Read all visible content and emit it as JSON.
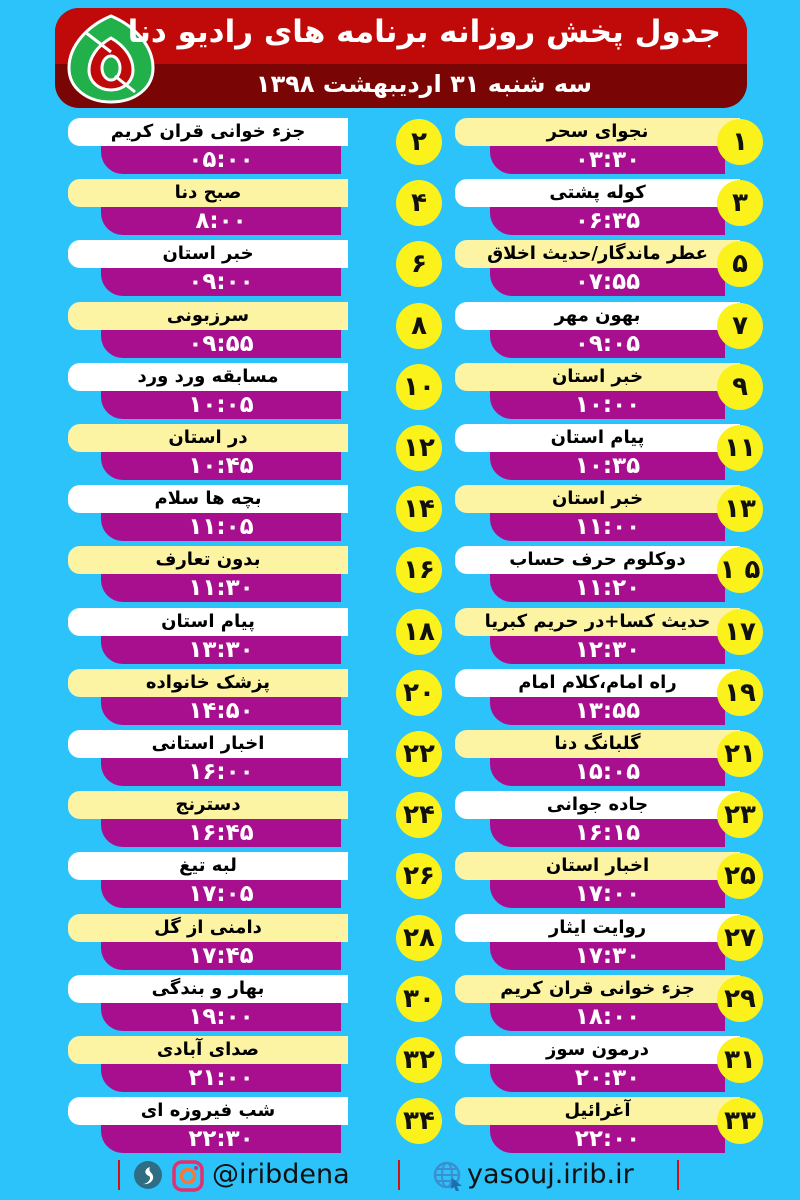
{
  "header": {
    "title": "جدول پخش روزانه برنامه های رادیو دنا",
    "date": "سه شنبه ۳۱ اردیبهشت  ۱۳۹۸",
    "logo": "radio-dena-logo"
  },
  "colors": {
    "background": "#2cc3fb",
    "header_top": "#c00a0a",
    "header_bottom": "#7a0505",
    "time_bar": "#a80f8f",
    "number_circle": "#fbf21c",
    "label_white": "#ffffff",
    "label_yellow": "#fdf4a3"
  },
  "left_column": [
    {
      "number": "۲",
      "title": "جزء خوانی قران کریم",
      "time": "۰۵:۰۰",
      "style": "white"
    },
    {
      "number": "۴",
      "title": "صبح دنا",
      "time": "۸:۰۰",
      "style": "yellow"
    },
    {
      "number": "۶",
      "title": "خبر استان",
      "time": "۰۹:۰۰",
      "style": "white"
    },
    {
      "number": "۸",
      "title": "سرزبونی",
      "time": "۰۹:۵۵",
      "style": "yellow"
    },
    {
      "number": "۱۰",
      "title": "مسابقه ورد ورد",
      "time": "۱۰:۰۵",
      "style": "white"
    },
    {
      "number": "۱۲",
      "title": "در استان",
      "time": "۱۰:۴۵",
      "style": "yellow"
    },
    {
      "number": "۱۴",
      "title": "بچه ها سلام",
      "time": "۱۱:۰۵",
      "style": "white"
    },
    {
      "number": "۱۶",
      "title": "بدون تعارف",
      "time": "۱۱:۳۰",
      "style": "yellow"
    },
    {
      "number": "۱۸",
      "title": "پیام استان",
      "time": "۱۳:۳۰",
      "style": "white"
    },
    {
      "number": "۲۰",
      "title": "پزشک خانواده",
      "time": "۱۴:۵۰",
      "style": "yellow"
    },
    {
      "number": "۲۲",
      "title": "اخبار استانی",
      "time": "۱۶:۰۰",
      "style": "white"
    },
    {
      "number": "۲۴",
      "title": "دسترنج",
      "time": "۱۶:۴۵",
      "style": "yellow"
    },
    {
      "number": "۲۶",
      "title": "لبه تیغ",
      "time": "۱۷:۰۵",
      "style": "white"
    },
    {
      "number": "۲۸",
      "title": "دامنی از گل",
      "time": "۱۷:۴۵",
      "style": "yellow"
    },
    {
      "number": "۳۰",
      "title": "بهار و بندگی",
      "time": "۱۹:۰۰",
      "style": "white"
    },
    {
      "number": "۳۲",
      "title": "صدای آبادی",
      "time": "۲۱:۰۰",
      "style": "yellow"
    },
    {
      "number": "۳۴",
      "title": "شب فیروزه ای",
      "time": "۲۲:۳۰",
      "style": "white"
    }
  ],
  "right_column": [
    {
      "number": "۱",
      "title": "نجوای سحر",
      "time": "۰۳:۳۰",
      "style": "yellow"
    },
    {
      "number": "۳",
      "title": "کوله پشتی",
      "time": "۰۶:۳۵",
      "style": "white"
    },
    {
      "number": "۵",
      "title": "عطر ماندگار/حدیث اخلاق",
      "time": "۰۷:۵۵",
      "style": "yellow"
    },
    {
      "number": "۷",
      "title": "بهون مهر",
      "time": "۰۹:۰۵",
      "style": "white"
    },
    {
      "number": "۹",
      "title": "خبر استان",
      "time": "۱۰:۰۰",
      "style": "yellow"
    },
    {
      "number": "۱۱",
      "title": "پیام استان",
      "time": "۱۰:۳۵",
      "style": "white"
    },
    {
      "number": "۱۳",
      "title": "خبر استان",
      "time": "۱۱:۰۰",
      "style": "yellow"
    },
    {
      "number": "۱ ۵",
      "title": "دوکلوم حرف حساب",
      "time": "۱۱:۲۰",
      "style": "white"
    },
    {
      "number": "۱۷",
      "title": "حدیث کسا+در حریم کبریا",
      "time": "۱۲:۳۰",
      "style": "yellow"
    },
    {
      "number": "۱۹",
      "title": "راه امام،کلام امام",
      "time": "۱۳:۵۵",
      "style": "white"
    },
    {
      "number": "۲۱",
      "title": "گلبانگ دنا",
      "time": "۱۵:۰۵",
      "style": "yellow"
    },
    {
      "number": "۲۳",
      "title": "جاده جوانی",
      "time": "۱۶:۱۵",
      "style": "white"
    },
    {
      "number": "۲۵",
      "title": "اخبار استان",
      "time": "۱۷:۰۰",
      "style": "yellow"
    },
    {
      "number": "۲۷",
      "title": "روایت ایثار",
      "time": "۱۷:۳۰",
      "style": "white"
    },
    {
      "number": "۲۹",
      "title": "جزء خوانی قران کریم",
      "time": "۱۸:۰۰",
      "style": "yellow"
    },
    {
      "number": "۳۱",
      "title": "درمون سوز",
      "time": "۲۰:۳۰",
      "style": "white"
    },
    {
      "number": "۳۳",
      "title": "آغرائیل",
      "time": "۲۲:۰۰",
      "style": "yellow"
    }
  ],
  "footer": {
    "social_handle": "@iribdena",
    "website": "yasouj.irib.ir",
    "icons": [
      "soroush-icon",
      "instagram-icon",
      "globe-icon"
    ]
  }
}
